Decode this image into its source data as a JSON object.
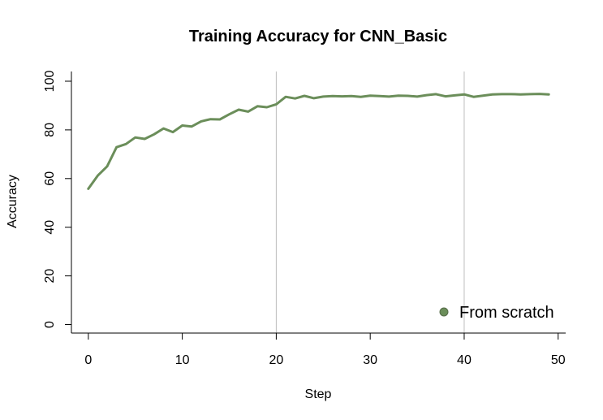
{
  "chart_data": {
    "type": "line",
    "title": "Training Accuracy for CNN_Basic",
    "xlabel": "Step",
    "ylabel": "Accuracy",
    "xlim": [
      -1.8,
      50.8
    ],
    "ylim": [
      -3.5,
      104
    ],
    "xticks": [
      0,
      10,
      20,
      30,
      40,
      50
    ],
    "yticks": [
      0,
      20,
      40,
      60,
      80,
      100
    ],
    "vlines": [
      20,
      40
    ],
    "grid": false,
    "legend_position": "bottom-right",
    "line_color": "#6b8e5a",
    "vline_color": "#bebebe",
    "series": [
      {
        "name": "From scratch",
        "x": [
          0,
          1,
          2,
          3,
          4,
          5,
          6,
          7,
          8,
          9,
          10,
          11,
          12,
          13,
          14,
          15,
          16,
          17,
          18,
          19,
          20,
          21,
          22,
          23,
          24,
          25,
          26,
          27,
          28,
          29,
          30,
          31,
          32,
          33,
          34,
          35,
          36,
          37,
          38,
          39,
          40,
          41,
          42,
          43,
          44,
          45,
          46,
          47,
          48,
          49
        ],
        "y": [
          55.8,
          61.2,
          65.0,
          72.9,
          74.2,
          76.9,
          76.3,
          78.2,
          80.6,
          79.1,
          81.8,
          81.4,
          83.5,
          84.4,
          84.3,
          86.4,
          88.3,
          87.5,
          89.7,
          89.3,
          90.5,
          93.6,
          92.9,
          94.0,
          93.0,
          93.7,
          93.9,
          93.8,
          93.9,
          93.6,
          94.1,
          93.9,
          93.7,
          94.1,
          94.0,
          93.7,
          94.3,
          94.7,
          93.8,
          94.2,
          94.6,
          93.6,
          94.1,
          94.6,
          94.7,
          94.7,
          94.6,
          94.7,
          94.8,
          94.6
        ]
      }
    ]
  }
}
